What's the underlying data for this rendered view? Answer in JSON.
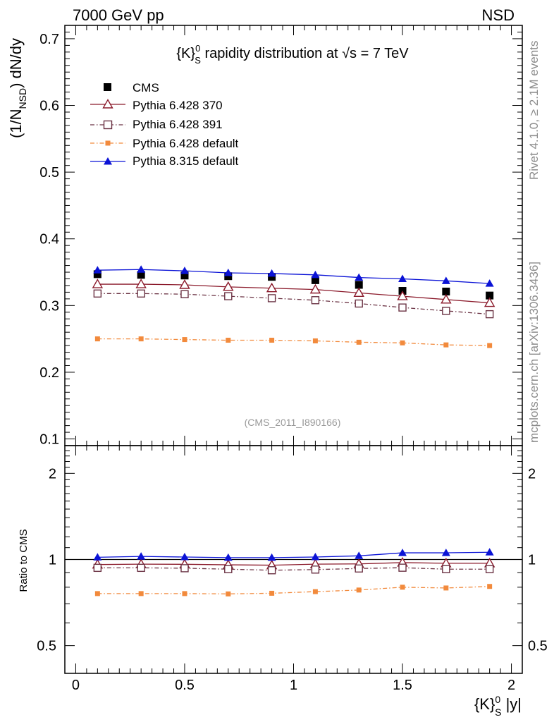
{
  "header": {
    "left": "7000 GeV pp",
    "right": "NSD"
  },
  "side_labels": {
    "rivet": "Rivet 4.1.0, ≥ 2.1M events",
    "mcplots": "mcplots.cern.ch [arXiv:1306.3436]"
  },
  "watermark": "(CMS_2011_I890166)",
  "colors": {
    "cms": "#000000",
    "p370": "#8b1a2b",
    "p391": "#6b3344",
    "p6def": "#f28a3c",
    "p8def": "#0b13d6"
  },
  "chart_data": [
    {
      "panel": "main",
      "type": "line",
      "title": {
        "pre": "{K}",
        "sup": "0",
        "sub": "S",
        "mid": " rapidity distribution at ",
        "sqrt": "√s",
        "post": " = 7 TeV"
      },
      "ylabel": {
        "pre": "(1/N",
        "sub": "NSD",
        "post": ") dN/dy"
      },
      "ylim": [
        0.09,
        0.72
      ],
      "yticks": [
        {
          "v": 0.1,
          "label": "0.1"
        },
        {
          "v": 0.2,
          "label": "0.2"
        },
        {
          "v": 0.3,
          "label": "0.3"
        },
        {
          "v": 0.4,
          "label": "0.4"
        },
        {
          "v": 0.5,
          "label": "0.5"
        },
        {
          "v": 0.6,
          "label": "0.6"
        },
        {
          "v": 0.7,
          "label": "0.7"
        }
      ],
      "legend_position": "top-left",
      "x": [
        0.1,
        0.3,
        0.5,
        0.7,
        0.9,
        1.1,
        1.3,
        1.5,
        1.7,
        1.9
      ],
      "series": [
        {
          "key": "cms",
          "name": "CMS",
          "marker": "filled-square",
          "line": "none",
          "values": [
            0.347,
            0.346,
            0.345,
            0.344,
            0.343,
            0.338,
            0.331,
            0.322,
            0.321,
            0.315
          ]
        },
        {
          "key": "p370",
          "name": "Pythia 6.428 370",
          "marker": "open-triangle",
          "line": "solid",
          "values": [
            0.332,
            0.332,
            0.331,
            0.328,
            0.326,
            0.324,
            0.319,
            0.314,
            0.309,
            0.304
          ]
        },
        {
          "key": "p391",
          "name": "Pythia 6.428 391",
          "marker": "open-square",
          "line": "dash-dot",
          "values": [
            0.318,
            0.318,
            0.317,
            0.314,
            0.311,
            0.308,
            0.303,
            0.297,
            0.292,
            0.287
          ]
        },
        {
          "key": "p6def",
          "name": "Pythia 6.428 default",
          "marker": "small-square",
          "line": "dash-dot",
          "values": [
            0.25,
            0.25,
            0.249,
            0.248,
            0.248,
            0.247,
            0.245,
            0.244,
            0.241,
            0.24
          ]
        },
        {
          "key": "p8def",
          "name": "Pythia 8.315 default",
          "marker": "filled-triangle",
          "line": "solid",
          "values": [
            0.353,
            0.354,
            0.352,
            0.349,
            0.348,
            0.346,
            0.342,
            0.34,
            0.337,
            0.333
          ]
        }
      ]
    },
    {
      "panel": "ratio",
      "type": "line",
      "ylabel": "Ratio to CMS",
      "yscale": "log",
      "ylim": [
        0.4,
        2.5
      ],
      "yticks": [
        {
          "v": 0.5,
          "label": "0.5"
        },
        {
          "v": 1,
          "label": "1"
        },
        {
          "v": 2,
          "label": "2"
        }
      ],
      "xlabel": {
        "pre": "{K}",
        "sup": "0",
        "sub": "S",
        "post": " |y|"
      },
      "xlim": [
        -0.05,
        2.05
      ],
      "xticks": [
        {
          "v": 0,
          "label": "0"
        },
        {
          "v": 0.5,
          "label": "0.5"
        },
        {
          "v": 1,
          "label": "1"
        },
        {
          "v": 1.5,
          "label": "1.5"
        },
        {
          "v": 2,
          "label": "2"
        }
      ],
      "x": [
        0.1,
        0.3,
        0.5,
        0.7,
        0.9,
        1.1,
        1.3,
        1.5,
        1.7,
        1.9
      ],
      "series": [
        {
          "key": "p370",
          "marker": "open-triangle",
          "line": "solid",
          "values": [
            0.96,
            0.963,
            0.962,
            0.958,
            0.955,
            0.963,
            0.965,
            0.975,
            0.97,
            0.97
          ]
        },
        {
          "key": "p391",
          "marker": "open-square",
          "line": "dash-dot",
          "values": [
            0.935,
            0.935,
            0.932,
            0.925,
            0.917,
            0.922,
            0.93,
            0.936,
            0.925,
            0.925
          ]
        },
        {
          "key": "p6def",
          "marker": "small-square",
          "line": "dash-dot",
          "values": [
            0.76,
            0.76,
            0.76,
            0.758,
            0.762,
            0.772,
            0.782,
            0.8,
            0.795,
            0.805
          ]
        },
        {
          "key": "p8def",
          "marker": "filled-triangle",
          "line": "solid",
          "values": [
            1.018,
            1.025,
            1.02,
            1.015,
            1.015,
            1.02,
            1.03,
            1.055,
            1.055,
            1.06
          ]
        }
      ]
    }
  ]
}
